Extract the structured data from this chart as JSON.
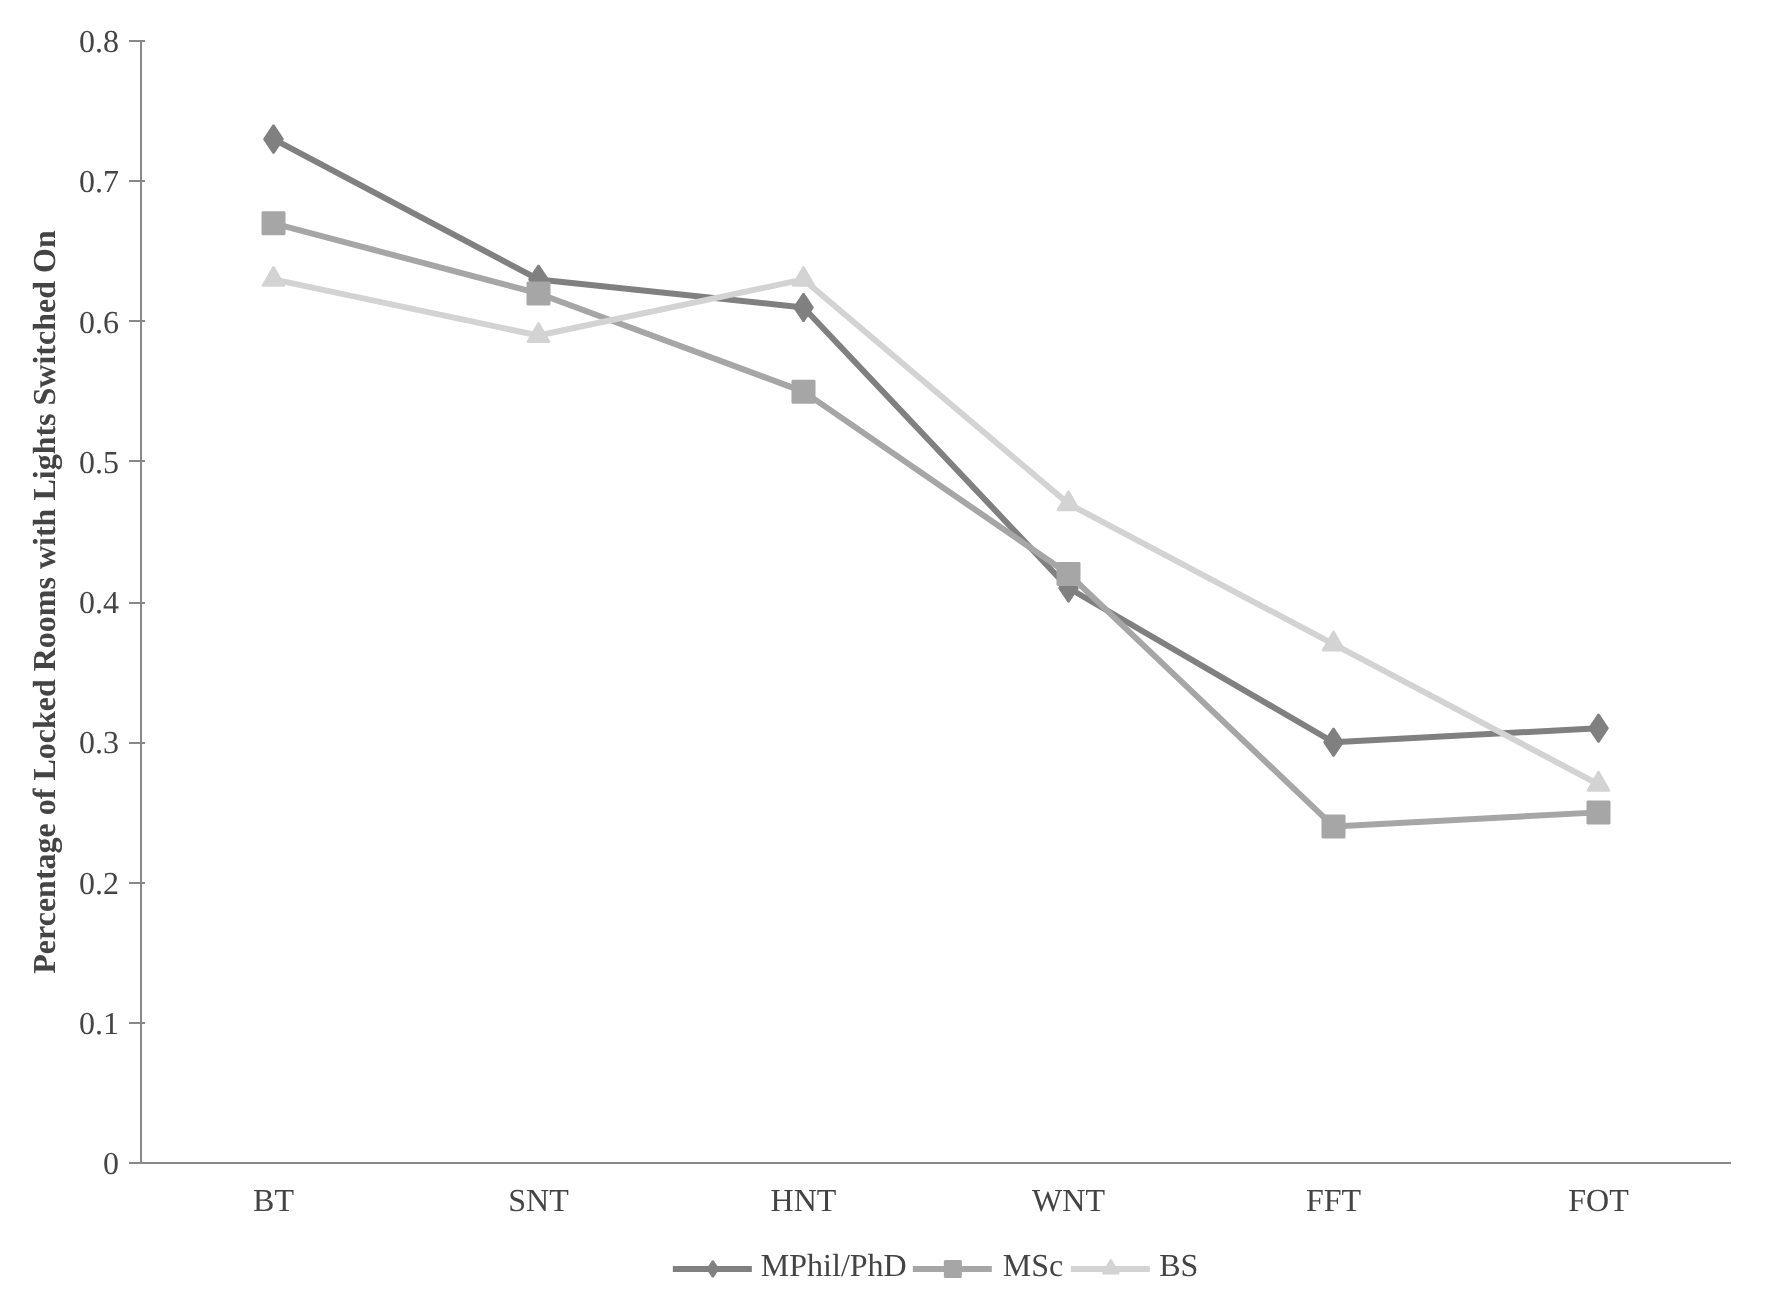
{
  "chart_data": {
    "type": "line",
    "ylabel": "Percentage of Locked Rooms with Lights Switched On",
    "categories": [
      "BT",
      "SNT",
      "HNT",
      "WNT",
      "FFT",
      "FOT"
    ],
    "ylim": [
      0,
      0.8
    ],
    "yticks": [
      {
        "value": 0,
        "label": "0"
      },
      0.1,
      0.2,
      0.3,
      0.4,
      0.5,
      0.6,
      0.7,
      0.8
    ],
    "grid": false,
    "legend": "bottom",
    "line_style": "solid",
    "series": [
      {
        "name": "MPhil/PhD",
        "color": "#808080",
        "marker": "diamond",
        "values": [
          0.73,
          0.63,
          0.61,
          0.41,
          0.3,
          0.31
        ]
      },
      {
        "name": "MSc",
        "color": "#a6a6a6",
        "marker": "square",
        "values": [
          0.67,
          0.62,
          0.55,
          0.42,
          0.24,
          0.25
        ]
      },
      {
        "name": "BS",
        "color": "#d3d3d3",
        "marker": "triangle",
        "values": [
          0.63,
          0.59,
          0.63,
          0.47,
          0.37,
          0.27
        ]
      }
    ]
  }
}
